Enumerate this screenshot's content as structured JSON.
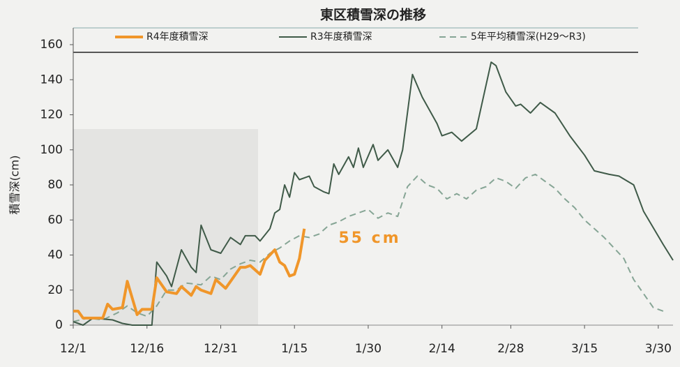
{
  "chart_data": {
    "type": "line",
    "title": "東区積雪深の推移",
    "ylabel": "積雪深(cm)",
    "annotation": "55 cm",
    "xlim": [
      0,
      122
    ],
    "xticks": [
      {
        "value": 0,
        "label": "12/1"
      },
      {
        "value": 15,
        "label": "12/16"
      },
      {
        "value": 30,
        "label": "12/31"
      },
      {
        "value": 45,
        "label": "1/15"
      },
      {
        "value": 60,
        "label": "1/30"
      },
      {
        "value": 75,
        "label": "2/14"
      },
      {
        "value": 89,
        "label": "2/28"
      },
      {
        "value": 104,
        "label": "3/15"
      },
      {
        "value": 119,
        "label": "3/30"
      }
    ],
    "ylim": [
      0,
      160
    ],
    "yticks": [
      0,
      20,
      40,
      60,
      80,
      100,
      120,
      140,
      160
    ],
    "grid": false,
    "legend": "top",
    "series": [
      {
        "name": "R4年度積雪深",
        "color": "#f0962a",
        "style": "solid",
        "x": [
          0,
          1,
          2,
          3,
          6,
          7,
          8,
          10,
          11,
          13,
          14,
          16,
          17,
          19,
          21,
          22,
          24,
          25,
          26,
          28,
          29,
          31,
          32,
          34,
          35,
          36,
          38,
          39,
          41,
          42,
          43,
          44,
          45,
          46,
          47
        ],
        "values": [
          8,
          8,
          4,
          4,
          4,
          12,
          9,
          10,
          25,
          6,
          9,
          9,
          27,
          19,
          18,
          22,
          17,
          22,
          20,
          18,
          26,
          21,
          25,
          33,
          33,
          34,
          29,
          37,
          43,
          36,
          34,
          28,
          29,
          38,
          55
        ]
      },
      {
        "name": "R3年度積雪深",
        "color": "#3f5a48",
        "style": "solid",
        "x": [
          0,
          2,
          4,
          8,
          10,
          12,
          16,
          17,
          19,
          20,
          22,
          24,
          25,
          26,
          28,
          30,
          32,
          34,
          35,
          37,
          38,
          40,
          41,
          42,
          43,
          44,
          45,
          46,
          48,
          49,
          51,
          52,
          53,
          54,
          56,
          57,
          58,
          59,
          61,
          62,
          64,
          66,
          67,
          69,
          71,
          72,
          74,
          75,
          77,
          79,
          82,
          85,
          86,
          88,
          90,
          91,
          93,
          95,
          98,
          101,
          104,
          106,
          109,
          111,
          114,
          116,
          120,
          122
        ],
        "values": [
          2,
          0,
          4,
          3,
          1,
          0,
          0,
          36,
          28,
          22,
          43,
          33,
          30,
          57,
          43,
          41,
          50,
          46,
          51,
          51,
          48,
          55,
          64,
          66,
          80,
          73,
          87,
          83,
          85,
          79,
          76,
          75,
          92,
          86,
          96,
          90,
          101,
          90,
          103,
          94,
          100,
          90,
          100,
          143,
          130,
          125,
          115,
          108,
          110,
          105,
          112,
          150,
          148,
          133,
          125,
          126,
          121,
          127,
          121,
          108,
          97,
          88,
          86,
          85,
          80,
          65,
          46,
          37
        ]
      },
      {
        "name": "5年平均積雪深(H29～R3)",
        "color": "#86a595",
        "style": "dashed",
        "x": [
          0,
          3,
          6,
          9,
          11,
          13,
          15,
          17,
          19,
          21,
          23,
          26,
          28,
          30,
          32,
          34,
          36,
          38,
          40,
          42,
          44,
          46,
          48,
          50,
          52,
          54,
          56,
          58,
          60,
          62,
          64,
          66,
          68,
          70,
          72,
          74,
          76,
          78,
          80,
          82,
          84,
          86,
          88,
          90,
          92,
          94,
          96,
          98,
          100,
          102,
          104,
          106,
          108,
          110,
          112,
          114,
          116,
          118,
          120
        ],
        "values": [
          2,
          4,
          3,
          7,
          11,
          7,
          5,
          11,
          20,
          20,
          24,
          23,
          28,
          26,
          32,
          35,
          37,
          36,
          41,
          44,
          48,
          51,
          50,
          52,
          57,
          59,
          62,
          64,
          66,
          61,
          64,
          62,
          79,
          85,
          80,
          78,
          72,
          75,
          72,
          77,
          79,
          84,
          82,
          78,
          84,
          86,
          82,
          78,
          72,
          67,
          60,
          55,
          50,
          44,
          38,
          26,
          18,
          10,
          8
        ]
      }
    ]
  }
}
